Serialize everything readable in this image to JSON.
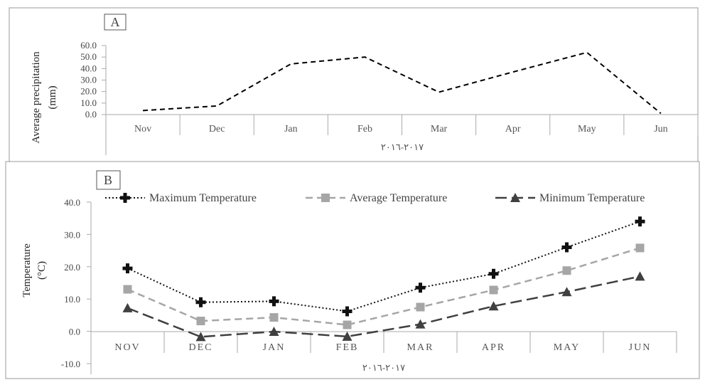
{
  "chart_data": [
    {
      "panel_label": "A",
      "type": "line",
      "ylabel_line1": "Average precipitation",
      "ylabel_line2": "(mm)",
      "ylim": [
        0,
        60
      ],
      "yticks": [
        "60.0",
        "50.0",
        "40.0",
        "30.0",
        "20.0",
        "10.0",
        "0.0"
      ],
      "categories": [
        "Nov",
        "Dec",
        "Jan",
        "Feb",
        "Mar",
        "Apr",
        "May",
        "Jun"
      ],
      "group_label": "٢٠١٧-٢٠١٦",
      "series": [
        {
          "values": [
            3.5,
            7.5,
            44,
            50,
            19.5,
            37,
            54,
            1
          ]
        }
      ]
    },
    {
      "panel_label": "B",
      "type": "line",
      "ylabel_line1": "Temperature",
      "ylabel_line2": "(°C)",
      "ylim": [
        -10,
        40
      ],
      "yticks": [
        "40.0",
        "30.0",
        "20.0",
        "10.0",
        "0.0",
        "-10.0"
      ],
      "categories": [
        "NOV",
        "DEC",
        "JAN",
        "FEB",
        "MAR",
        "APR",
        "MAY",
        "JUN"
      ],
      "group_label": "٢٠١٧-٢٠١٦",
      "legend_position": "top",
      "series": [
        {
          "name": "Maximum Temperature",
          "color": "#111111",
          "values": [
            19.5,
            9,
            9.3,
            6.2,
            13.5,
            17.8,
            26,
            34
          ]
        },
        {
          "name": "Average Temperature",
          "color": "#a6a6a6",
          "values": [
            13,
            3.2,
            4.3,
            2,
            7.5,
            12.8,
            18.8,
            25.8
          ]
        },
        {
          "name": "Minimum Temperature",
          "color": "#404040",
          "values": [
            7.2,
            -1.7,
            -0.1,
            -1.6,
            2.2,
            7.8,
            12.2,
            17
          ]
        }
      ]
    }
  ]
}
